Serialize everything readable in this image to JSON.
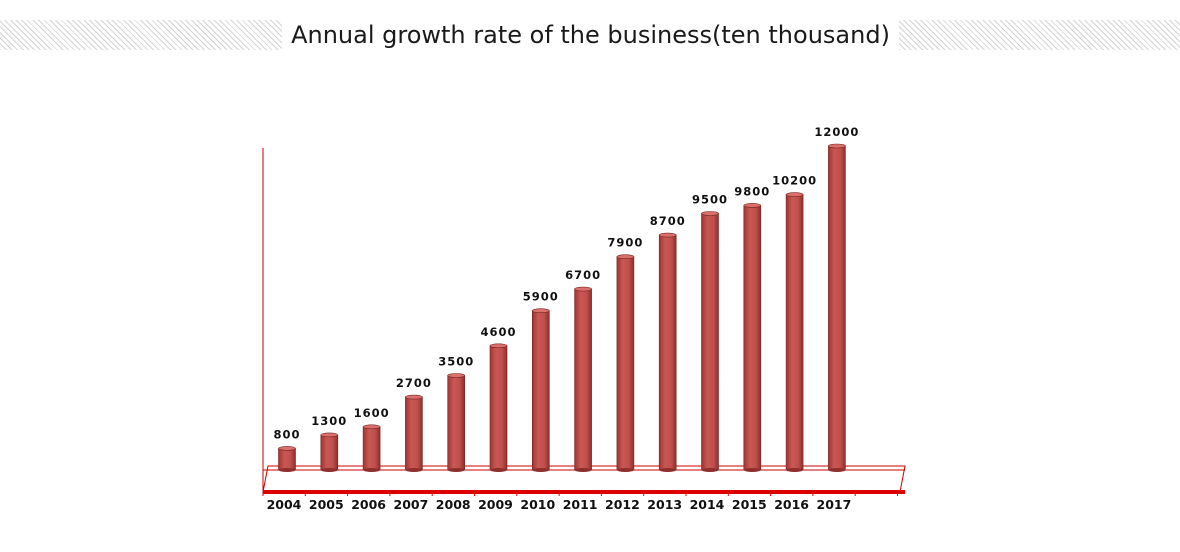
{
  "chart_data": {
    "type": "bar",
    "title": "Annual growth rate of the business(ten thousand)",
    "categories": [
      "2004",
      "2005",
      "2006",
      "2007",
      "2008",
      "2009",
      "2010",
      "2011",
      "2012",
      "2013",
      "2014",
      "2015",
      "2016",
      "2017"
    ],
    "values": [
      800,
      1300,
      1600,
      2700,
      3500,
      4600,
      5900,
      6700,
      7900,
      8700,
      9500,
      9800,
      10200,
      12000
    ],
    "xlabel": "",
    "ylabel": "",
    "ylim": [
      0,
      12000
    ],
    "grid": false,
    "legend": "none",
    "colors": {
      "bar": "#c0504d",
      "bar_dark": "#8e2f2c",
      "bar_top": "#d9706c",
      "axis": "#cc0000"
    }
  }
}
